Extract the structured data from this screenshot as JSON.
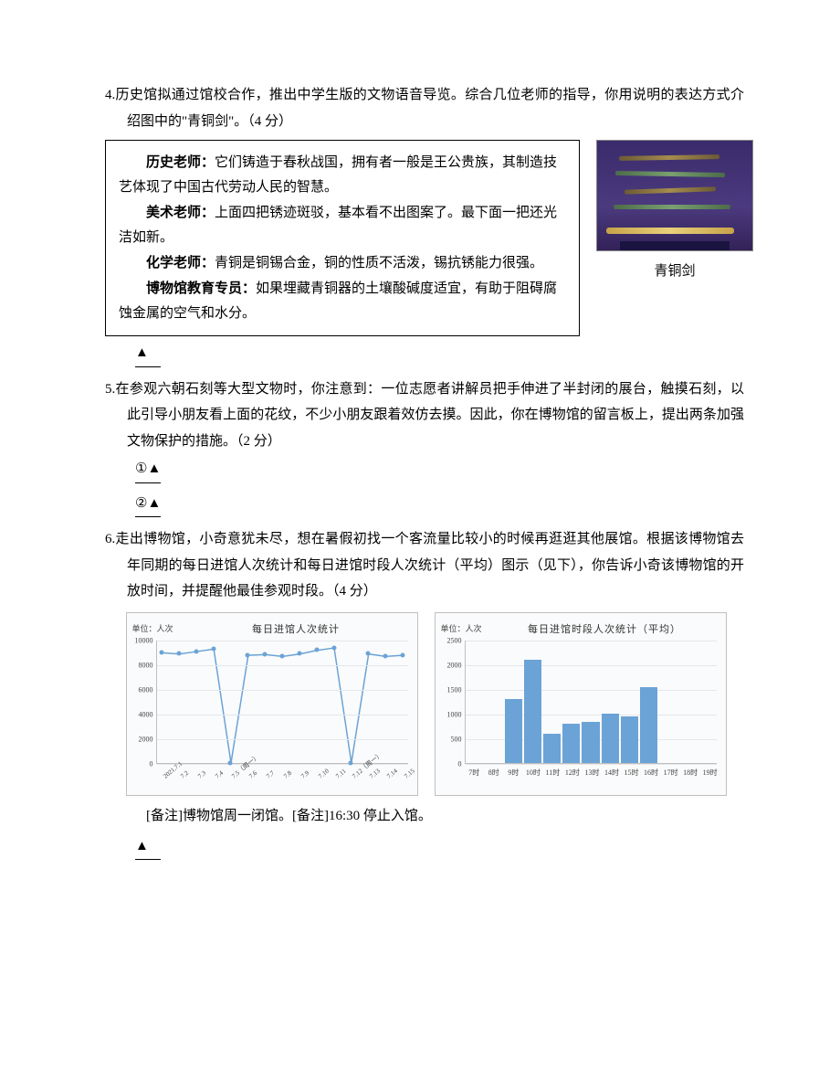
{
  "q4": {
    "number": "4.",
    "text": "历史馆拟通过馆校合作，推出中学生版的文物语音导览。综合几位老师的指导，你用说明的表达方式介绍图中的\"青铜剑\"。（4 分）",
    "teachers": {
      "history_label": "历史老师：",
      "history_text": "它们铸造于春秋战国，拥有者一般是王公贵族，其制造技艺体现了中国古代劳动人民的智慧。",
      "art_label": "美术老师：",
      "art_text": "上面四把锈迹斑驳，基本看不出图案了。最下面一把还光洁如新。",
      "chem_label": "化学老师：",
      "chem_text": "青铜是铜锡合金，铜的性质不活泼，锡抗锈能力很强。",
      "museum_label": "博物馆教育专员：",
      "museum_text": "如果埋藏青铜器的土壤酸碱度适宜，有助于阻碍腐蚀金属的空气和水分。"
    },
    "image_caption": "青铜剑",
    "answer_mark": "▲"
  },
  "q5": {
    "number": "5.",
    "text": "在参观六朝石刻等大型文物时，你注意到：一位志愿者讲解员把手伸进了半封闭的展台，触摸石刻，以此引导小朋友看上面的花纹，不少小朋友跟着效仿去摸。因此，你在博物馆的留言板上，提出两条加强文物保护的措施。（2 分）",
    "mark1": "①▲",
    "mark2": "②▲"
  },
  "q6": {
    "number": "6.",
    "text": "走出博物馆，小奇意犹未尽，想在暑假初找一个客流量比较小的时候再逛逛其他展馆。根据该博物馆去年同期的每日进馆人次统计和每日进馆时段人次统计（平均）图示（见下），你告诉小奇该博物馆的开放时间，并提醒他最佳参观时段。（4 分）",
    "note_line": "[备注]博物馆周一闭馆。[备注]16:30 停止入馆。",
    "answer_mark": "▲"
  },
  "chart_daily": {
    "type": "line",
    "unit": "单位：人次",
    "title": "每日进馆人次统计",
    "ylim": [
      0,
      10000
    ],
    "ytick_step": 2000,
    "yticks": [
      0,
      2000,
      4000,
      6000,
      8000,
      10000
    ],
    "x_labels": [
      "2021.7.1",
      "7.2",
      "7.3",
      "7.4",
      "7.5（周一）",
      "7.6",
      "7.7",
      "7.8",
      "7.9",
      "7.10",
      "7.11",
      "7.12（周一）",
      "7.13",
      "7.14",
      "7.15"
    ],
    "values": [
      9000,
      8900,
      9100,
      9300,
      0,
      8800,
      8850,
      8700,
      8900,
      9200,
      9400,
      0,
      8900,
      8700,
      8800
    ],
    "line_color": "#6ba3d6",
    "grid_color": "#e4e6ea",
    "background_color": "#fafbfc",
    "border_color": "#bfbfbf",
    "marker_size": 5
  },
  "chart_hourly": {
    "type": "bar",
    "unit": "单位：人次",
    "title": "每日进馆时段人次统计（平均）",
    "ylim": [
      0,
      2500
    ],
    "ytick_step": 500,
    "yticks": [
      0,
      500,
      1000,
      1500,
      2000,
      2500
    ],
    "x_labels": [
      "7时",
      "8时",
      "9时",
      "10时",
      "11时",
      "12时",
      "13时",
      "14时",
      "15时",
      "16时",
      "17时",
      "18时",
      "19时"
    ],
    "start_index": 2,
    "values": [
      1300,
      2100,
      600,
      800,
      850,
      1000,
      950,
      1550
    ],
    "bar_color": "#6ba3d6",
    "grid_color": "#e4e6ea",
    "background_color": "#fafbfc",
    "border_color": "#bfbfbf",
    "bar_width_ratio": 0.9
  }
}
